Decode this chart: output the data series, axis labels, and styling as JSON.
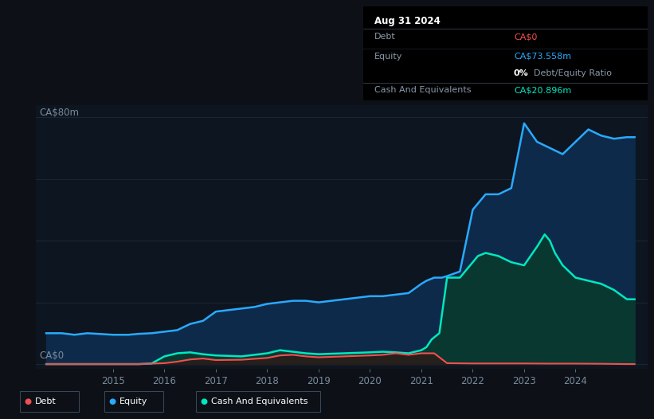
{
  "bg_color": "#0d1117",
  "plot_bg_color": "#0d1520",
  "grid_color": "#1e2a38",
  "ylabel": "CA$80m",
  "y0label": "CA$0",
  "xlim": [
    2013.5,
    2025.4
  ],
  "ylim": [
    -1.5,
    84
  ],
  "yticks": [
    0,
    20,
    40,
    60,
    80
  ],
  "xtick_labels": [
    "2015",
    "2016",
    "2017",
    "2018",
    "2019",
    "2020",
    "2021",
    "2022",
    "2023",
    "2024"
  ],
  "xtick_positions": [
    2015,
    2016,
    2017,
    2018,
    2019,
    2020,
    2021,
    2022,
    2023,
    2024
  ],
  "equity_color": "#29aaff",
  "equity_fill": "#0e2a4a",
  "debt_color": "#f05050",
  "debt_fill": "#3a1010",
  "cash_color": "#00e8c0",
  "cash_fill": "#083830",
  "equity_x": [
    2013.7,
    2014.0,
    2014.25,
    2014.5,
    2015.0,
    2015.3,
    2015.5,
    2015.75,
    2016.0,
    2016.25,
    2016.5,
    2016.75,
    2017.0,
    2017.25,
    2017.5,
    2017.75,
    2018.0,
    2018.25,
    2018.5,
    2018.75,
    2019.0,
    2019.25,
    2019.5,
    2019.75,
    2020.0,
    2020.25,
    2020.5,
    2020.75,
    2021.0,
    2021.1,
    2021.25,
    2021.4,
    2021.5,
    2021.75,
    2022.0,
    2022.1,
    2022.25,
    2022.5,
    2022.75,
    2023.0,
    2023.25,
    2023.5,
    2023.75,
    2024.0,
    2024.25,
    2024.5,
    2024.75,
    2025.0,
    2025.15
  ],
  "equity_y": [
    10,
    10,
    9.5,
    10,
    9.5,
    9.5,
    9.8,
    10,
    10.5,
    11,
    13,
    14,
    17,
    17.5,
    18,
    18.5,
    19.5,
    20,
    20.5,
    20.5,
    20,
    20.5,
    21,
    21.5,
    22,
    22,
    22.5,
    23,
    26,
    27,
    28,
    28,
    28.5,
    30,
    50,
    52,
    55,
    55,
    57,
    78,
    72,
    70,
    68,
    72,
    76,
    74,
    73,
    73.5,
    73.5
  ],
  "debt_x": [
    2013.7,
    2014.5,
    2015.0,
    2015.5,
    2016.0,
    2016.25,
    2016.5,
    2016.75,
    2017.0,
    2017.5,
    2018.0,
    2018.25,
    2018.5,
    2018.75,
    2019.0,
    2019.5,
    2020.0,
    2020.25,
    2020.5,
    2020.75,
    2021.0,
    2021.1,
    2021.25,
    2021.5,
    2022.0,
    2022.5,
    2023.0,
    2023.5,
    2024.0,
    2024.5,
    2025.0,
    2025.15
  ],
  "debt_y": [
    0,
    0,
    0,
    0,
    0.3,
    0.8,
    1.5,
    1.8,
    1.3,
    1.4,
    2.0,
    2.8,
    3.0,
    2.5,
    2.2,
    2.5,
    2.8,
    3.0,
    3.5,
    3.0,
    3.5,
    3.5,
    3.5,
    0.3,
    0.2,
    0.2,
    0.2,
    0.15,
    0.15,
    0.1,
    0,
    0
  ],
  "cash_x": [
    2013.7,
    2014.5,
    2015.0,
    2015.5,
    2015.75,
    2016.0,
    2016.25,
    2016.5,
    2016.75,
    2017.0,
    2017.5,
    2018.0,
    2018.25,
    2018.5,
    2018.75,
    2019.0,
    2019.5,
    2020.0,
    2020.25,
    2020.5,
    2020.75,
    2021.0,
    2021.1,
    2021.2,
    2021.35,
    2021.5,
    2021.75,
    2022.0,
    2022.1,
    2022.25,
    2022.5,
    2022.75,
    2023.0,
    2023.25,
    2023.4,
    2023.5,
    2023.6,
    2023.75,
    2024.0,
    2024.25,
    2024.5,
    2024.75,
    2025.0,
    2025.15
  ],
  "cash_y": [
    0,
    0,
    0,
    0,
    0.2,
    2.5,
    3.5,
    3.8,
    3.2,
    2.8,
    2.5,
    3.5,
    4.5,
    4.0,
    3.5,
    3.2,
    3.5,
    3.8,
    4.0,
    3.8,
    3.5,
    4.5,
    5.5,
    8.0,
    10,
    28,
    28,
    33,
    35,
    36,
    35,
    33,
    32,
    38,
    42,
    40,
    36,
    32,
    28,
    27,
    26,
    24,
    21,
    21
  ],
  "info_box": {
    "date": "Aug 31 2024",
    "debt_label": "Debt",
    "debt_value": "CA$0",
    "equity_label": "Equity",
    "equity_value": "CA$73.558m",
    "ratio_value": "0%",
    "ratio_label": "Debt/Equity Ratio",
    "cash_label": "Cash And Equivalents",
    "cash_value": "CA$20.896m"
  },
  "legend_items": [
    {
      "label": "Debt",
      "color": "#f05050"
    },
    {
      "label": "Equity",
      "color": "#29aaff"
    },
    {
      "label": "Cash And Equivalents",
      "color": "#00e8c0"
    }
  ]
}
